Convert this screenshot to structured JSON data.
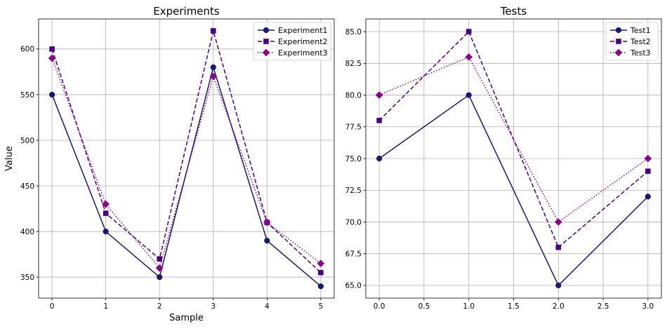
{
  "chart_data": [
    {
      "type": "line",
      "title": "Experiments",
      "xlabel": "Sample",
      "ylabel": "Value",
      "xlim": [
        -0.25,
        5.25
      ],
      "ylim": [
        327,
        633
      ],
      "xticks": [
        0,
        1,
        2,
        3,
        4,
        5
      ],
      "xtick_labels": [
        "0",
        "1",
        "2",
        "3",
        "4",
        "5"
      ],
      "yticks": [
        350,
        400,
        450,
        500,
        550,
        600
      ],
      "ytick_labels": [
        "350",
        "400",
        "450",
        "500",
        "550",
        "600"
      ],
      "grid": true,
      "legend_position": "top-right",
      "x": [
        0,
        1,
        2,
        3,
        4,
        5
      ],
      "series": [
        {
          "name": "Experiment1",
          "values": [
            550,
            400,
            350,
            580,
            390,
            340
          ],
          "color": "#191970",
          "linestyle": "solid",
          "marker": "circle"
        },
        {
          "name": "Experiment2",
          "values": [
            600,
            420,
            370,
            620,
            410,
            355
          ],
          "color": "#4b0082",
          "linestyle": "dashed",
          "marker": "square"
        },
        {
          "name": "Experiment3",
          "values": [
            590,
            430,
            360,
            570,
            410,
            365
          ],
          "color": "#8b008b",
          "linestyle": "dotted",
          "marker": "diamond"
        }
      ]
    },
    {
      "type": "line",
      "title": "Tests",
      "xlabel": "",
      "ylabel": "",
      "xlim": [
        -0.15,
        3.15
      ],
      "ylim": [
        64.0,
        86.0
      ],
      "xticks": [
        0,
        0.5,
        1,
        1.5,
        2,
        2.5,
        3
      ],
      "xtick_labels": [
        "0.0",
        "0.5",
        "1.0",
        "1.5",
        "2.0",
        "2.5",
        "3.0"
      ],
      "yticks": [
        65,
        67.5,
        70,
        72.5,
        75,
        77.5,
        80,
        82.5,
        85
      ],
      "ytick_labels": [
        "65.0",
        "67.5",
        "70.0",
        "72.5",
        "75.0",
        "77.5",
        "80.0",
        "82.5",
        "85.0"
      ],
      "grid": true,
      "legend_position": "top-right",
      "x": [
        0,
        1,
        2,
        3
      ],
      "series": [
        {
          "name": "Test1",
          "values": [
            75,
            80,
            65,
            72
          ],
          "color": "#191970",
          "linestyle": "solid",
          "marker": "circle"
        },
        {
          "name": "Test2",
          "values": [
            78,
            85,
            68,
            74
          ],
          "color": "#4b0082",
          "linestyle": "dashed",
          "marker": "square"
        },
        {
          "name": "Test3",
          "values": [
            80,
            83,
            70,
            75
          ],
          "color": "#8b008b",
          "linestyle": "dotted",
          "marker": "diamond"
        }
      ]
    }
  ]
}
